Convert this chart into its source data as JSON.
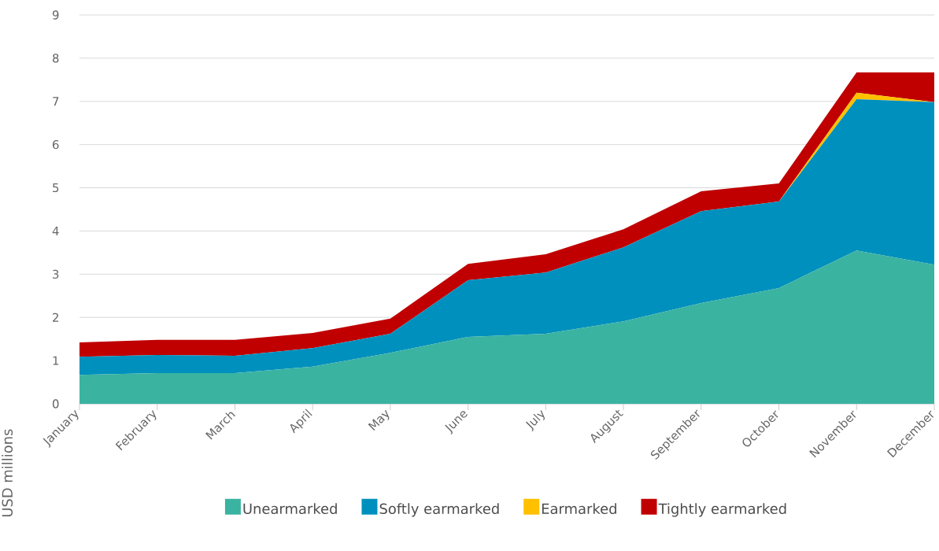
{
  "chart_data": {
    "type": "area",
    "stacked": true,
    "ylabel": "USD millions",
    "categories": [
      "January",
      "February",
      "March",
      "April",
      "May",
      "June",
      "July",
      "August",
      "September",
      "October",
      "November",
      "December"
    ],
    "series": [
      {
        "name": "Unearmarked",
        "color": "#3ab3a1",
        "values": [
          0.67,
          0.71,
          0.71,
          0.86,
          1.18,
          1.55,
          1.62,
          1.91,
          2.33,
          2.68,
          3.55,
          3.22
        ]
      },
      {
        "name": "Softly earmarked",
        "color": "#0090bd",
        "values": [
          0.42,
          0.42,
          0.4,
          0.43,
          0.44,
          1.31,
          1.42,
          1.71,
          2.13,
          2.0,
          3.5,
          3.76
        ]
      },
      {
        "name": "Earmarked",
        "color": "#ffc000",
        "values": [
          0,
          0,
          0,
          0,
          0,
          0,
          0,
          0,
          0,
          0,
          0.15,
          0
        ]
      },
      {
        "name": "Tightly earmarked",
        "color": "#c00000",
        "values": [
          0.33,
          0.35,
          0.37,
          0.35,
          0.35,
          0.38,
          0.42,
          0.42,
          0.46,
          0.42,
          0.47,
          0.69
        ]
      }
    ],
    "ylim": [
      0,
      9
    ],
    "yticks": [
      0,
      1,
      2,
      3,
      4,
      5,
      6,
      7,
      8,
      9
    ],
    "grid": "y",
    "legend": "bottom"
  }
}
